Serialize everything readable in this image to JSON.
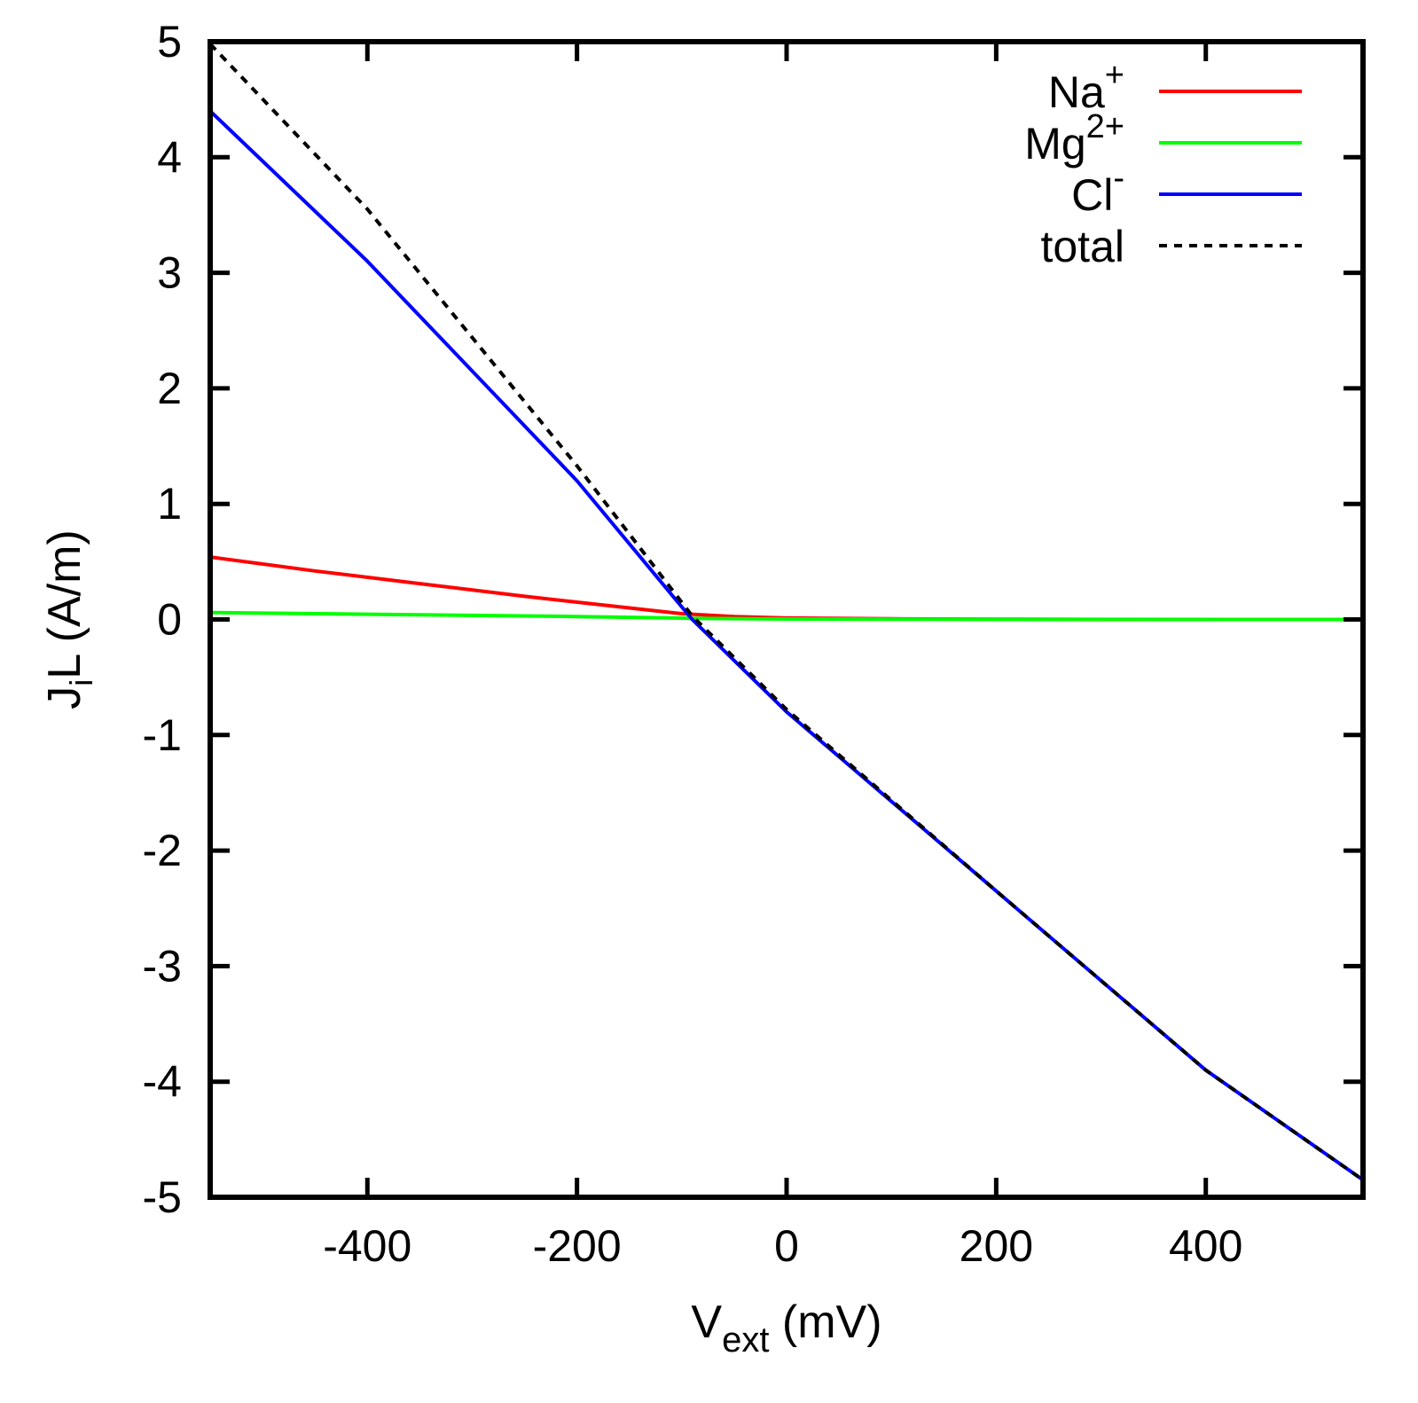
{
  "chart_data": {
    "type": "line",
    "title": "",
    "xlabel": {
      "main": "V",
      "sub": "ext",
      "unit": " (mV)"
    },
    "ylabel": {
      "main": "J",
      "sub": "i",
      "rest": "L (A/m)"
    },
    "xlim": [
      -550,
      550
    ],
    "ylim": [
      -5,
      5
    ],
    "xticks": [
      -400,
      -200,
      0,
      200,
      400
    ],
    "yticks": [
      -5,
      -4,
      -3,
      -2,
      -1,
      0,
      1,
      2,
      3,
      4,
      5
    ],
    "xtick_labels": [
      "-400",
      "-200",
      "0",
      "200",
      "400"
    ],
    "ytick_labels": [
      "-5",
      "-4",
      "-3",
      "-2",
      "-1",
      "0",
      "1",
      "2",
      "3",
      "4",
      "5"
    ],
    "legend_position": "top-right",
    "series": [
      {
        "name": "Na+",
        "label_main": "Na",
        "label_sup": "+",
        "color": "#ff0000",
        "dash": "solid",
        "points": [
          [
            -550,
            0.54
          ],
          [
            -450,
            0.42
          ],
          [
            -350,
            0.31
          ],
          [
            -250,
            0.2
          ],
          [
            -150,
            0.1
          ],
          [
            -100,
            0.05
          ],
          [
            -50,
            0.025
          ],
          [
            0,
            0.012
          ],
          [
            100,
            0.005
          ],
          [
            200,
            0.002
          ],
          [
            300,
            0.0
          ],
          [
            400,
            0.0
          ],
          [
            550,
            0.0
          ]
        ]
      },
      {
        "name": "Mg2+",
        "label_main": "Mg",
        "label_sup": "2+",
        "color": "#00ff00",
        "dash": "solid",
        "points": [
          [
            -550,
            0.06
          ],
          [
            -400,
            0.045
          ],
          [
            -200,
            0.025
          ],
          [
            -90,
            0.01
          ],
          [
            0,
            0.004
          ],
          [
            200,
            0.001
          ],
          [
            550,
            0.0
          ]
        ]
      },
      {
        "name": "Cl-",
        "label_main": "Cl",
        "label_sup": "-",
        "color": "#0000ff",
        "dash": "solid",
        "points": [
          [
            -550,
            4.4
          ],
          [
            -400,
            3.1
          ],
          [
            -200,
            1.2
          ],
          [
            -90,
            0.0
          ],
          [
            0,
            -0.8
          ],
          [
            200,
            -2.35
          ],
          [
            400,
            -3.9
          ],
          [
            550,
            -4.85
          ]
        ]
      },
      {
        "name": "total",
        "label_main": "total",
        "label_sup": "",
        "color": "#000000",
        "dash": "dotted",
        "points": [
          [
            -550,
            4.98
          ],
          [
            -400,
            3.55
          ],
          [
            -200,
            1.33
          ],
          [
            -90,
            0.03
          ],
          [
            0,
            -0.78
          ],
          [
            200,
            -2.35
          ],
          [
            400,
            -3.9
          ],
          [
            550,
            -4.85
          ]
        ]
      }
    ]
  }
}
